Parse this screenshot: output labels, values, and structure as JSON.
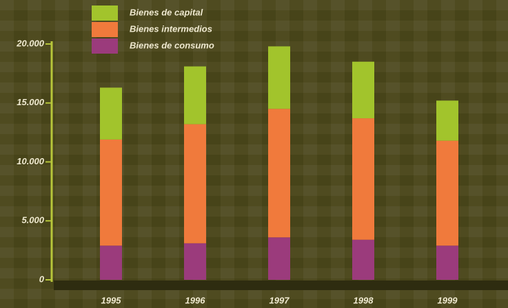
{
  "chart_data": {
    "type": "stacked-bar",
    "categories": [
      "1995",
      "1996",
      "1997",
      "1998",
      "1999"
    ],
    "series": [
      {
        "name": "Bienes de consumo",
        "color": "#9b3b7c",
        "values": [
          2900,
          3100,
          3600,
          3400,
          2900
        ]
      },
      {
        "name": "Bienes intermedios",
        "color": "#f07a3c",
        "values": [
          9000,
          10100,
          10900,
          10300,
          8900
        ]
      },
      {
        "name": "Bienes de capital",
        "color": "#a2c42c",
        "values": [
          4400,
          4900,
          5300,
          4800,
          3400
        ]
      }
    ],
    "ylim": [
      0,
      20000
    ],
    "yticks": [
      0,
      {
        "value": 5000,
        "label": "5.000"
      },
      {
        "value": 10000,
        "label": "10.000"
      },
      {
        "value": 15000,
        "label": "15.000"
      },
      {
        "value": 20000,
        "label": "20.000"
      }
    ],
    "legend": "top-left"
  }
}
